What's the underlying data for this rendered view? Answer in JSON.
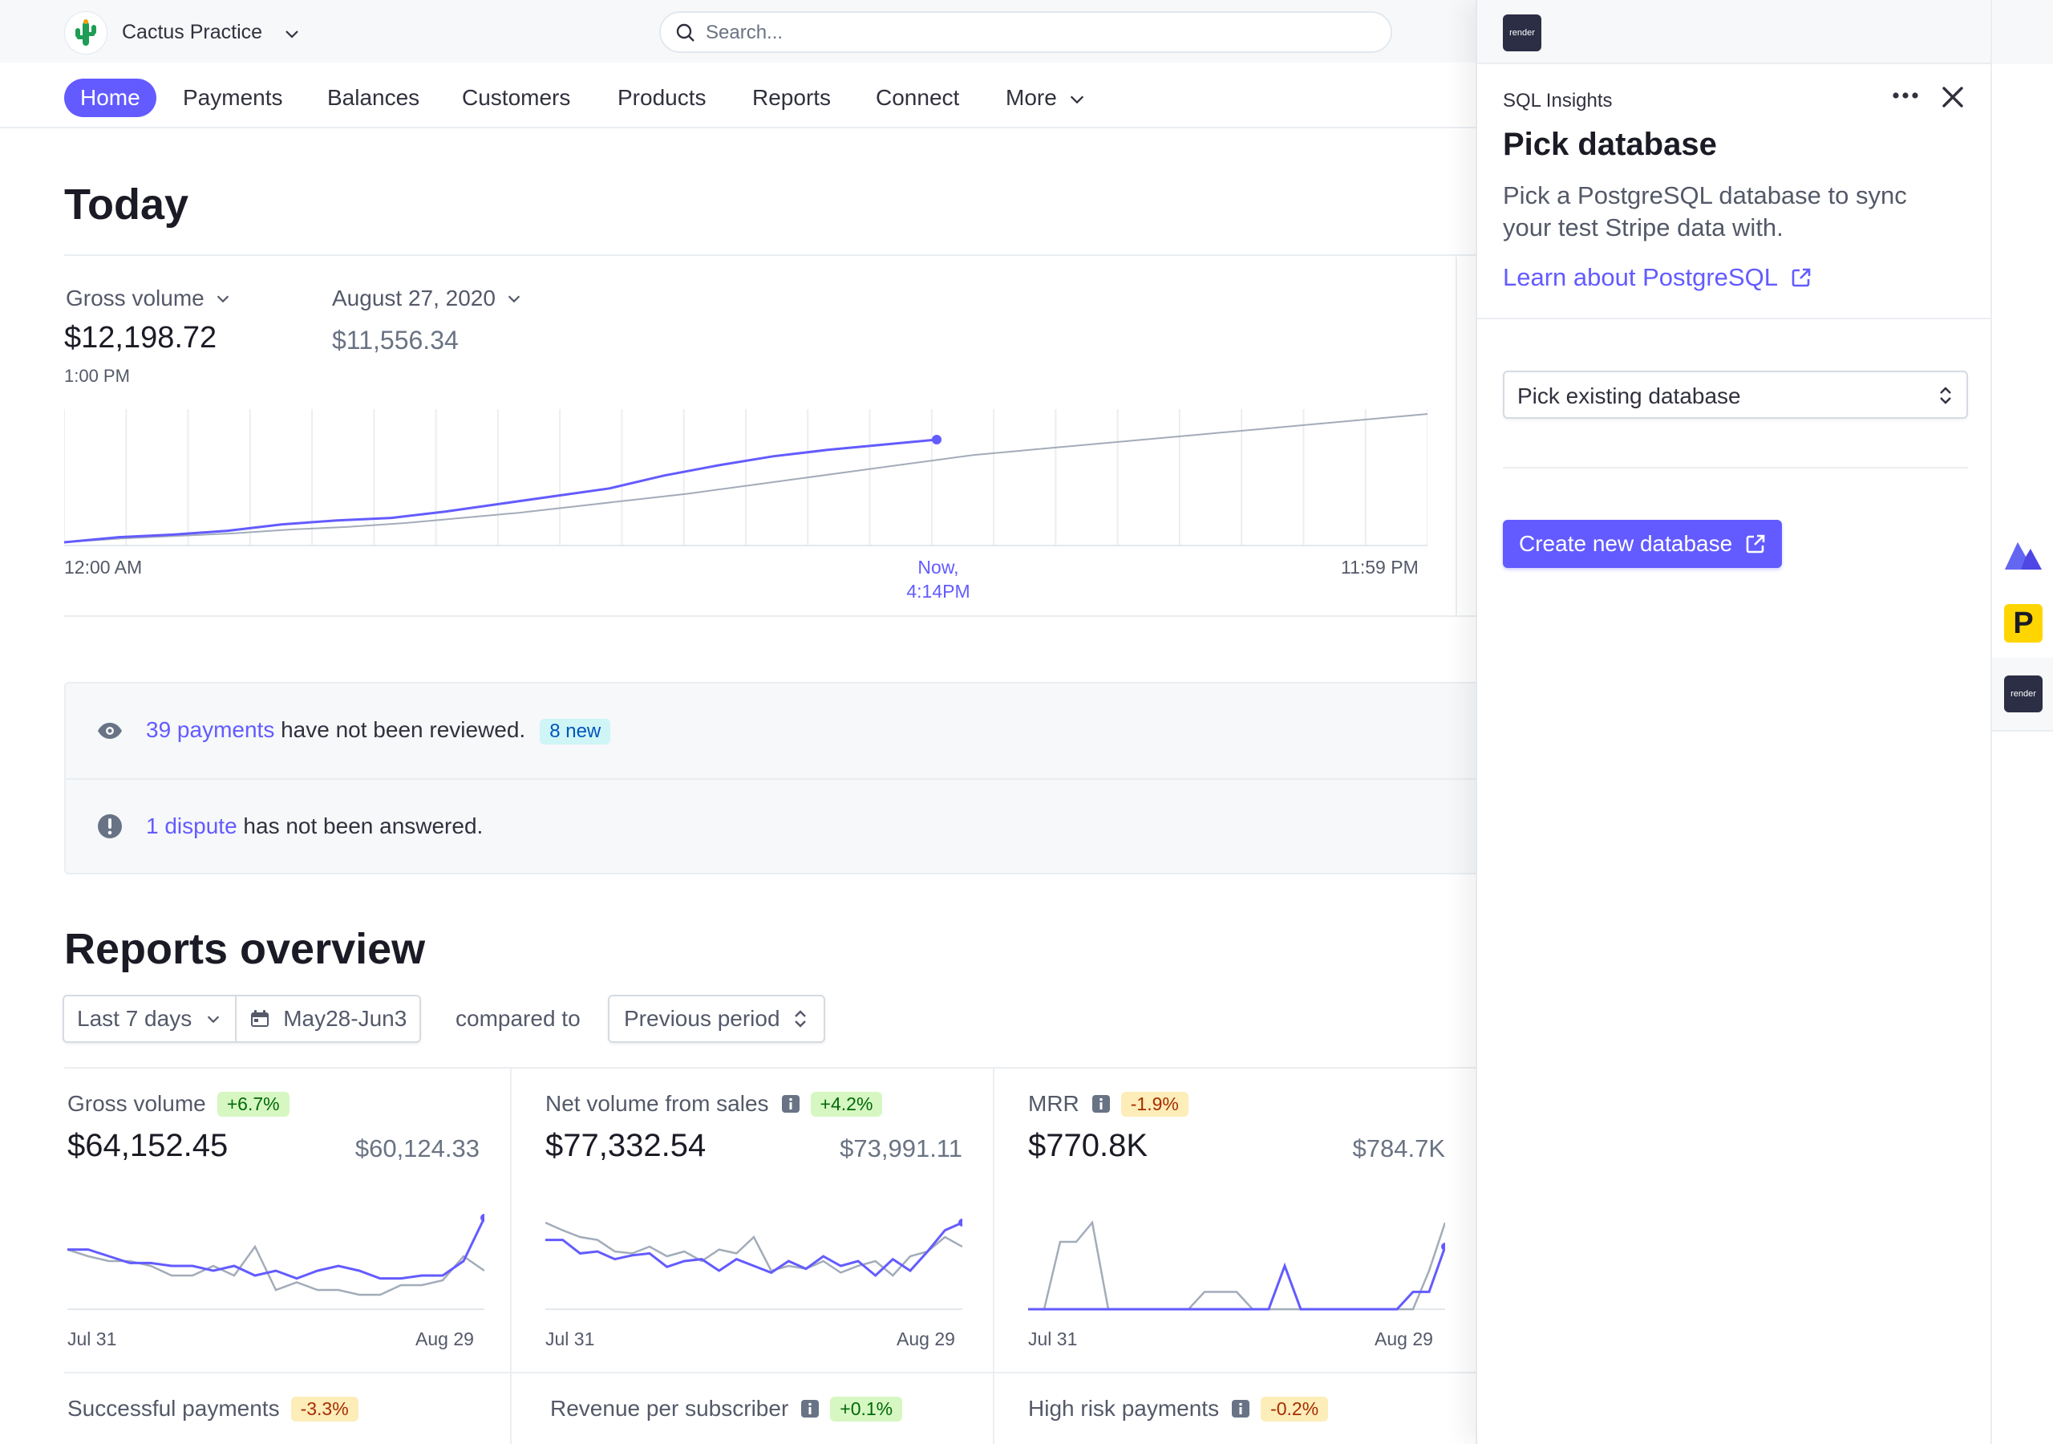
{
  "account": {
    "name": "Cactus Practice"
  },
  "search": {
    "placeholder": "Search..."
  },
  "nav": {
    "items": [
      "Home",
      "Payments",
      "Balances",
      "Customers",
      "Products",
      "Reports",
      "Connect",
      "More"
    ],
    "active": "Home"
  },
  "today": {
    "title": "Today",
    "metric_label": "Gross volume",
    "value": "$12,198.72",
    "time": "1:00 PM",
    "compare_label": "August 27, 2020",
    "compare_value": "$11,556.34",
    "axis_start": "12:00 AM",
    "axis_now_1": "Now,",
    "axis_now_2": "4:14PM",
    "axis_end": "11:59 PM",
    "colors": {
      "current": "#635bff",
      "compare": "#a3acb9"
    }
  },
  "alerts": [
    {
      "icon": "eye-icon",
      "link": "39 payments",
      "text": " have not been reviewed.",
      "badge": "8 new"
    },
    {
      "icon": "alert-circle-icon",
      "link": "1 dispute",
      "text": " has not been answered.",
      "badge": ""
    }
  ],
  "reports": {
    "title": "Reports overview",
    "range": "Last 7 days",
    "dates": "May28-Jun3",
    "compared_to": "compared to",
    "period": "Previous period",
    "cards": [
      {
        "title": "Gross volume",
        "pct": "+6.7%",
        "dir": "up",
        "info": false,
        "value": "$64,152.45",
        "prev": "$60,124.33",
        "start": "Jul 31",
        "end": "Aug 29"
      },
      {
        "title": "Net volume from sales",
        "pct": "+4.2%",
        "dir": "up",
        "info": true,
        "value": "$77,332.54",
        "prev": "$73,991.11",
        "start": "Jul 31",
        "end": "Aug 29"
      },
      {
        "title": "MRR",
        "pct": "-1.9%",
        "dir": "down",
        "info": true,
        "value": "$770.8K",
        "prev": "$784.7K",
        "start": "Jul 31",
        "end": "Aug 29"
      }
    ],
    "row2": [
      {
        "title": "Successful payments",
        "pct": "-3.3%",
        "dir": "down",
        "info": false
      },
      {
        "title": "Revenue per subscriber",
        "pct": "+0.1%",
        "dir": "up",
        "info": true
      },
      {
        "title": "High risk payments",
        "pct": "-0.2%",
        "dir": "down",
        "info": true
      }
    ]
  },
  "panel": {
    "logo_text": "render",
    "app_name": "SQL Insights",
    "title": "Pick database",
    "description": "Pick a PostgreSQL database to sync your test Stripe data with.",
    "learn_link": "Learn about PostgreSQL",
    "select_value": "Pick existing database",
    "create_button": "Create new database"
  },
  "rail": {
    "render_text": "render",
    "p_text": "P"
  },
  "chart_data": [
    {
      "type": "line",
      "title": "",
      "series": [
        {
          "values": [
            0,
            4,
            6,
            9,
            14,
            17,
            19,
            24,
            30,
            36,
            42,
            52,
            60,
            67,
            72,
            76,
            80
          ]
        },
        {
          "values": [
            0,
            3,
            5,
            7,
            10,
            12,
            15,
            19,
            23,
            28,
            33,
            38,
            44,
            50,
            56,
            62,
            68,
            72,
            76,
            80,
            84,
            88,
            92,
            96,
            100
          ]
        }
      ],
      "xlabel": "",
      "ylabel": ""
    },
    {
      "type": "line",
      "series": [
        {
          "values": [
            62,
            62,
            55,
            48,
            48,
            45,
            45,
            40,
            45,
            35,
            40,
            32,
            40,
            45,
            40,
            32,
            32,
            35,
            35,
            50,
            95
          ]
        },
        {
          "values": [
            62,
            55,
            50,
            50,
            45,
            35,
            35,
            45,
            35,
            65,
            20,
            28,
            20,
            20,
            15,
            15,
            25,
            25,
            30,
            55,
            40
          ]
        }
      ]
    },
    {
      "type": "line",
      "series": [
        {
          "values": [
            72,
            72,
            58,
            60,
            52,
            56,
            58,
            44,
            50,
            52,
            40,
            52,
            45,
            38,
            50,
            42,
            55,
            45,
            50,
            35,
            52,
            40,
            60,
            82,
            90
          ]
        },
        {
          "values": [
            90,
            82,
            75,
            72,
            60,
            58,
            65,
            55,
            60,
            50,
            62,
            58,
            75,
            40,
            45,
            42,
            50,
            38,
            45,
            50,
            35,
            55,
            60,
            75,
            65
          ]
        }
      ]
    },
    {
      "type": "line",
      "series": [
        {
          "values": [
            0,
            0,
            0,
            0,
            0,
            0,
            0,
            0,
            0,
            0,
            0,
            0,
            0,
            0,
            0,
            0,
            45,
            0,
            0,
            0,
            0,
            0,
            0,
            0,
            18,
            18,
            65
          ]
        },
        {
          "values": [
            0,
            0,
            70,
            70,
            90,
            0,
            0,
            0,
            0,
            0,
            0,
            18,
            18,
            18,
            0,
            0,
            0,
            0,
            0,
            0,
            0,
            0,
            0,
            0,
            0,
            40,
            90
          ]
        }
      ]
    }
  ]
}
